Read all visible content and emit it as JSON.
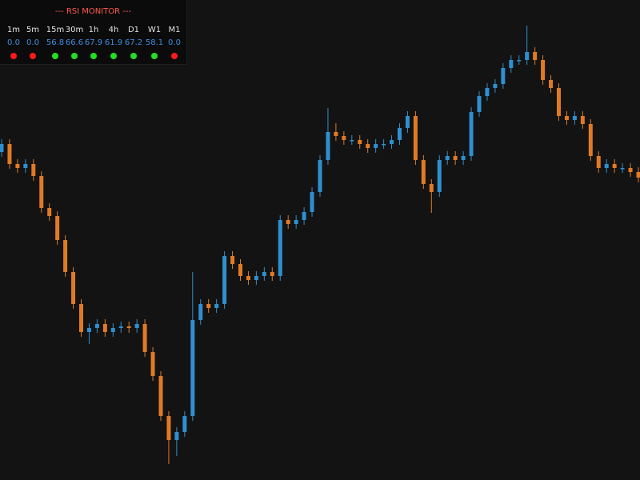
{
  "chart_data": {
    "type": "candlestick",
    "ylim": [
      0,
      600
    ],
    "up_color": "#2f8fcf",
    "down_color": "#e07a25",
    "candles": [
      [
        410,
        426,
        404,
        420
      ],
      [
        420,
        426,
        389,
        395
      ],
      [
        395,
        401,
        384,
        390
      ],
      [
        390,
        401,
        384,
        395
      ],
      [
        395,
        401,
        374,
        380
      ],
      [
        380,
        386,
        334,
        340
      ],
      [
        340,
        346,
        324,
        330
      ],
      [
        330,
        336,
        294,
        300
      ],
      [
        300,
        306,
        254,
        260
      ],
      [
        260,
        266,
        214,
        220
      ],
      [
        220,
        226,
        179,
        185
      ],
      [
        185,
        196,
        170,
        190
      ],
      [
        190,
        201,
        184,
        195
      ],
      [
        195,
        201,
        179,
        185
      ],
      [
        185,
        196,
        179,
        190
      ],
      [
        190,
        198,
        184,
        192
      ],
      [
        192,
        198,
        184,
        190
      ],
      [
        190,
        201,
        184,
        195
      ],
      [
        195,
        201,
        154,
        160
      ],
      [
        160,
        166,
        124,
        130
      ],
      [
        130,
        136,
        74,
        80
      ],
      [
        80,
        86,
        20,
        50
      ],
      [
        50,
        66,
        30,
        60
      ],
      [
        60,
        86,
        54,
        80
      ],
      [
        80,
        260,
        74,
        200
      ],
      [
        200,
        226,
        194,
        220
      ],
      [
        220,
        226,
        209,
        215
      ],
      [
        215,
        226,
        209,
        220
      ],
      [
        220,
        286,
        214,
        280
      ],
      [
        280,
        286,
        264,
        270
      ],
      [
        270,
        276,
        249,
        255
      ],
      [
        255,
        261,
        244,
        250
      ],
      [
        250,
        261,
        244,
        255
      ],
      [
        255,
        266,
        249,
        260
      ],
      [
        260,
        266,
        249,
        255
      ],
      [
        255,
        331,
        249,
        325
      ],
      [
        325,
        331,
        314,
        320
      ],
      [
        320,
        331,
        314,
        325
      ],
      [
        325,
        341,
        319,
        335
      ],
      [
        335,
        366,
        329,
        360
      ],
      [
        360,
        406,
        354,
        400
      ],
      [
        400,
        465,
        394,
        435
      ],
      [
        435,
        446,
        424,
        430
      ],
      [
        430,
        436,
        419,
        425
      ],
      [
        425,
        431,
        419,
        425
      ],
      [
        425,
        431,
        414,
        420
      ],
      [
        420,
        426,
        409,
        415
      ],
      [
        415,
        426,
        409,
        420
      ],
      [
        420,
        426,
        414,
        420
      ],
      [
        420,
        431,
        414,
        425
      ],
      [
        425,
        446,
        419,
        440
      ],
      [
        440,
        461,
        434,
        455
      ],
      [
        455,
        461,
        394,
        400
      ],
      [
        400,
        406,
        364,
        370
      ],
      [
        370,
        376,
        334,
        360
      ],
      [
        360,
        406,
        354,
        400
      ],
      [
        400,
        411,
        394,
        405
      ],
      [
        405,
        411,
        394,
        400
      ],
      [
        400,
        411,
        394,
        405
      ],
      [
        405,
        466,
        399,
        460
      ],
      [
        460,
        486,
        454,
        480
      ],
      [
        480,
        496,
        474,
        490
      ],
      [
        490,
        501,
        484,
        495
      ],
      [
        495,
        521,
        489,
        515
      ],
      [
        515,
        531,
        509,
        525
      ],
      [
        525,
        531,
        519,
        525
      ],
      [
        525,
        568,
        519,
        535
      ],
      [
        535,
        541,
        519,
        525
      ],
      [
        525,
        531,
        494,
        500
      ],
      [
        500,
        506,
        484,
        490
      ],
      [
        490,
        496,
        449,
        455
      ],
      [
        455,
        461,
        444,
        450
      ],
      [
        450,
        461,
        444,
        455
      ],
      [
        455,
        461,
        439,
        445
      ],
      [
        445,
        451,
        399,
        405
      ],
      [
        405,
        411,
        384,
        390
      ],
      [
        390,
        401,
        384,
        395
      ],
      [
        395,
        401,
        384,
        390
      ],
      [
        390,
        396,
        384,
        390
      ],
      [
        390,
        396,
        379,
        385
      ],
      [
        385,
        391,
        372,
        378
      ]
    ]
  },
  "rsi_monitor": {
    "title": "--- RSI MONITOR ---",
    "columns": [
      {
        "timeframe": "1m",
        "value": "0.0",
        "signal": "#ff1a1a"
      },
      {
        "timeframe": "5m",
        "value": "0.0",
        "signal": "#ff1a1a"
      },
      {
        "timeframe": "15m",
        "value": "56.8",
        "signal": "#22e022"
      },
      {
        "timeframe": "30m",
        "value": "66.6",
        "signal": "#22e022"
      },
      {
        "timeframe": "1h",
        "value": "67.9",
        "signal": "#22e022"
      },
      {
        "timeframe": "4h",
        "value": "61.9",
        "signal": "#22e022"
      },
      {
        "timeframe": "D1",
        "value": "67.2",
        "signal": "#22e022"
      },
      {
        "timeframe": "W1",
        "value": "58.1",
        "signal": "#22e022"
      },
      {
        "timeframe": "M1",
        "value": "0.0",
        "signal": "#ff1a1a"
      }
    ]
  }
}
